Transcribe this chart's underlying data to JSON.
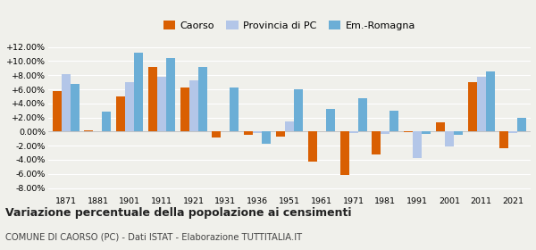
{
  "years": [
    1871,
    1881,
    1901,
    1911,
    1921,
    1931,
    1936,
    1951,
    1961,
    1971,
    1981,
    1991,
    2001,
    2011,
    2021
  ],
  "caorso": [
    5.8,
    0.2,
    5.0,
    9.2,
    6.3,
    -0.8,
    -0.5,
    -0.7,
    -4.3,
    -6.2,
    -3.3,
    -0.1,
    1.3,
    7.0,
    -2.4
  ],
  "provincia": [
    8.2,
    0.0,
    7.0,
    7.8,
    7.3,
    0.0,
    -0.2,
    1.5,
    0.0,
    -0.2,
    -0.3,
    -3.8,
    -2.1,
    7.8,
    -0.2
  ],
  "emromagna": [
    6.8,
    2.8,
    11.2,
    10.4,
    9.2,
    6.2,
    -1.7,
    6.0,
    3.2,
    4.8,
    2.9,
    -0.3,
    -0.5,
    8.5,
    2.0
  ],
  "color_caorso": "#d95f02",
  "color_provincia": "#b3c6e8",
  "color_emromagna": "#6baed6",
  "ylim": [
    -9,
    13
  ],
  "yticks": [
    -8,
    -6,
    -4,
    -2,
    0,
    2,
    4,
    6,
    8,
    10,
    12
  ],
  "title": "Variazione percentuale della popolazione ai censimenti",
  "subtitle": "COMUNE DI CAORSO (PC) - Dati ISTAT - Elaborazione TUTTITALIA.IT",
  "legend_labels": [
    "Caorso",
    "Provincia di PC",
    "Em.-Romagna"
  ],
  "background_color": "#f0f0eb"
}
